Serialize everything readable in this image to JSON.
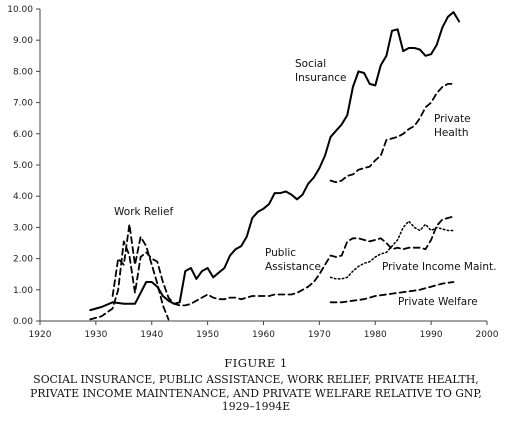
{
  "caption": {
    "figure": "FIGURE 1",
    "title_lines": [
      "SOCIAL INSURANCE, PUBLIC ASSISTANCE, WORK RELIEF, PRIVATE HEALTH,",
      "PRIVATE INCOME MAINTENANCE, AND PRIVATE WELFARE RELATIVE TO GNP,",
      "1929–1994E"
    ]
  },
  "chart_data": {
    "type": "line",
    "title": "",
    "xlabel": "",
    "ylabel": "",
    "xlim": [
      1920,
      2000
    ],
    "ylim": [
      0,
      10
    ],
    "x_ticks": [
      1920,
      1930,
      1940,
      1950,
      1960,
      1970,
      1980,
      1990,
      2000
    ],
    "y_ticks": [
      "0.00",
      "1.00",
      "2.00",
      "3.00",
      "4.00",
      "5.00",
      "6.00",
      "7.00",
      "8.00",
      "9.00",
      "10.00"
    ],
    "grid": false,
    "legend": "none (series labeled directly on plot)",
    "series": [
      {
        "name": "Social Insurance",
        "label_lines": [
          "Social",
          "Insurance"
        ],
        "style": "solid",
        "points": [
          [
            1929,
            0.35
          ],
          [
            1931,
            0.45
          ],
          [
            1933,
            0.6
          ],
          [
            1935,
            0.55
          ],
          [
            1937,
            0.55
          ],
          [
            1938,
            0.9
          ],
          [
            1939,
            1.25
          ],
          [
            1940,
            1.25
          ],
          [
            1941,
            1.1
          ],
          [
            1942,
            0.8
          ],
          [
            1943,
            0.65
          ],
          [
            1944,
            0.55
          ],
          [
            1945,
            0.6
          ],
          [
            1946,
            1.6
          ],
          [
            1947,
            1.7
          ],
          [
            1948,
            1.35
          ],
          [
            1949,
            1.6
          ],
          [
            1950,
            1.7
          ],
          [
            1951,
            1.4
          ],
          [
            1952,
            1.55
          ],
          [
            1953,
            1.7
          ],
          [
            1954,
            2.1
          ],
          [
            1955,
            2.3
          ],
          [
            1956,
            2.4
          ],
          [
            1957,
            2.7
          ],
          [
            1958,
            3.3
          ],
          [
            1959,
            3.5
          ],
          [
            1960,
            3.6
          ],
          [
            1961,
            3.75
          ],
          [
            1962,
            4.1
          ],
          [
            1963,
            4.1
          ],
          [
            1964,
            4.15
          ],
          [
            1965,
            4.05
          ],
          [
            1966,
            3.9
          ],
          [
            1967,
            4.05
          ],
          [
            1968,
            4.4
          ],
          [
            1969,
            4.6
          ],
          [
            1970,
            4.9
          ],
          [
            1971,
            5.3
          ],
          [
            1972,
            5.9
          ],
          [
            1973,
            6.1
          ],
          [
            1974,
            6.3
          ],
          [
            1975,
            6.6
          ],
          [
            1976,
            7.5
          ],
          [
            1977,
            8.0
          ],
          [
            1978,
            7.95
          ],
          [
            1979,
            7.6
          ],
          [
            1980,
            7.55
          ],
          [
            1981,
            8.2
          ],
          [
            1982,
            8.5
          ],
          [
            1983,
            9.3
          ],
          [
            1984,
            9.35
          ],
          [
            1985,
            8.65
          ],
          [
            1986,
            8.75
          ],
          [
            1987,
            8.75
          ],
          [
            1988,
            8.7
          ],
          [
            1989,
            8.5
          ],
          [
            1990,
            8.55
          ],
          [
            1991,
            8.85
          ],
          [
            1992,
            9.4
          ],
          [
            1993,
            9.75
          ],
          [
            1994,
            9.9
          ],
          [
            1995,
            9.6
          ]
        ]
      },
      {
        "name": "Public Assistance",
        "label_lines": [
          "Public",
          "Assistance"
        ],
        "style": "dashed",
        "points": [
          [
            1929,
            0.05
          ],
          [
            1931,
            0.15
          ],
          [
            1933,
            0.4
          ],
          [
            1934,
            1.0
          ],
          [
            1935,
            2.55
          ],
          [
            1936,
            2.1
          ],
          [
            1937,
            0.9
          ],
          [
            1938,
            2.05
          ],
          [
            1939,
            2.2
          ],
          [
            1940,
            2.0
          ],
          [
            1941,
            1.9
          ],
          [
            1942,
            1.25
          ],
          [
            1943,
            0.75
          ],
          [
            1944,
            0.55
          ],
          [
            1945,
            0.5
          ],
          [
            1946,
            0.5
          ],
          [
            1947,
            0.55
          ],
          [
            1948,
            0.65
          ],
          [
            1949,
            0.75
          ],
          [
            1950,
            0.85
          ],
          [
            1951,
            0.75
          ],
          [
            1952,
            0.7
          ],
          [
            1953,
            0.7
          ],
          [
            1954,
            0.75
          ],
          [
            1955,
            0.75
          ],
          [
            1956,
            0.7
          ],
          [
            1957,
            0.75
          ],
          [
            1958,
            0.8
          ],
          [
            1959,
            0.8
          ],
          [
            1960,
            0.8
          ],
          [
            1961,
            0.8
          ],
          [
            1962,
            0.85
          ],
          [
            1963,
            0.85
          ],
          [
            1964,
            0.85
          ],
          [
            1965,
            0.85
          ],
          [
            1966,
            0.9
          ],
          [
            1967,
            1.0
          ],
          [
            1968,
            1.1
          ],
          [
            1969,
            1.25
          ],
          [
            1970,
            1.5
          ],
          [
            1971,
            1.8
          ],
          [
            1972,
            2.1
          ],
          [
            1973,
            2.05
          ],
          [
            1974,
            2.1
          ],
          [
            1975,
            2.55
          ],
          [
            1976,
            2.65
          ],
          [
            1977,
            2.65
          ],
          [
            1978,
            2.6
          ],
          [
            1979,
            2.55
          ],
          [
            1980,
            2.6
          ],
          [
            1981,
            2.65
          ],
          [
            1982,
            2.5
          ],
          [
            1983,
            2.3
          ],
          [
            1984,
            2.35
          ],
          [
            1985,
            2.3
          ],
          [
            1986,
            2.35
          ],
          [
            1987,
            2.35
          ],
          [
            1988,
            2.35
          ],
          [
            1989,
            2.3
          ],
          [
            1990,
            2.6
          ],
          [
            1991,
            3.05
          ],
          [
            1992,
            3.25
          ],
          [
            1993,
            3.3
          ],
          [
            1994,
            3.35
          ]
        ]
      },
      {
        "name": "Work Relief",
        "label_lines": [
          "Work Relief"
        ],
        "style": "dashed",
        "points": [
          [
            1933,
            0.8
          ],
          [
            1934,
            2.0
          ],
          [
            1935,
            1.8
          ],
          [
            1936,
            3.1
          ],
          [
            1937,
            1.8
          ],
          [
            1938,
            2.7
          ],
          [
            1939,
            2.4
          ],
          [
            1940,
            1.8
          ],
          [
            1941,
            1.2
          ],
          [
            1942,
            0.5
          ],
          [
            1943,
            0.05
          ]
        ]
      },
      {
        "name": "Private Health",
        "label_lines": [
          "Private",
          "Health"
        ],
        "style": "dashed",
        "points": [
          [
            1972,
            4.5
          ],
          [
            1973,
            4.45
          ],
          [
            1974,
            4.5
          ],
          [
            1975,
            4.65
          ],
          [
            1976,
            4.7
          ],
          [
            1977,
            4.85
          ],
          [
            1978,
            4.9
          ],
          [
            1979,
            4.95
          ],
          [
            1980,
            5.15
          ],
          [
            1981,
            5.3
          ],
          [
            1982,
            5.8
          ],
          [
            1983,
            5.85
          ],
          [
            1984,
            5.9
          ],
          [
            1985,
            6.0
          ],
          [
            1986,
            6.15
          ],
          [
            1987,
            6.25
          ],
          [
            1988,
            6.5
          ],
          [
            1989,
            6.85
          ],
          [
            1990,
            7.0
          ],
          [
            1991,
            7.3
          ],
          [
            1992,
            7.5
          ],
          [
            1993,
            7.6
          ],
          [
            1994,
            7.6
          ]
        ]
      },
      {
        "name": "Private Income Maint.",
        "label_lines": [
          "Private Income Maint."
        ],
        "style": "dotted",
        "points": [
          [
            1972,
            1.4
          ],
          [
            1973,
            1.35
          ],
          [
            1974,
            1.35
          ],
          [
            1975,
            1.4
          ],
          [
            1976,
            1.6
          ],
          [
            1977,
            1.75
          ],
          [
            1978,
            1.85
          ],
          [
            1979,
            1.9
          ],
          [
            1980,
            2.05
          ],
          [
            1981,
            2.15
          ],
          [
            1982,
            2.2
          ],
          [
            1983,
            2.4
          ],
          [
            1984,
            2.6
          ],
          [
            1985,
            3.0
          ],
          [
            1986,
            3.2
          ],
          [
            1987,
            3.0
          ],
          [
            1988,
            2.9
          ],
          [
            1989,
            3.1
          ],
          [
            1990,
            2.9
          ],
          [
            1991,
            3.0
          ],
          [
            1992,
            2.95
          ],
          [
            1993,
            2.9
          ],
          [
            1994,
            2.9
          ]
        ]
      },
      {
        "name": "Private Welfare",
        "label_lines": [
          "Private Welfare"
        ],
        "style": "dashed",
        "points": [
          [
            1972,
            0.6
          ],
          [
            1974,
            0.6
          ],
          [
            1976,
            0.65
          ],
          [
            1978,
            0.7
          ],
          [
            1980,
            0.8
          ],
          [
            1982,
            0.85
          ],
          [
            1984,
            0.9
          ],
          [
            1986,
            0.95
          ],
          [
            1988,
            1.0
          ],
          [
            1990,
            1.1
          ],
          [
            1992,
            1.2
          ],
          [
            1994,
            1.25
          ]
        ]
      }
    ]
  }
}
